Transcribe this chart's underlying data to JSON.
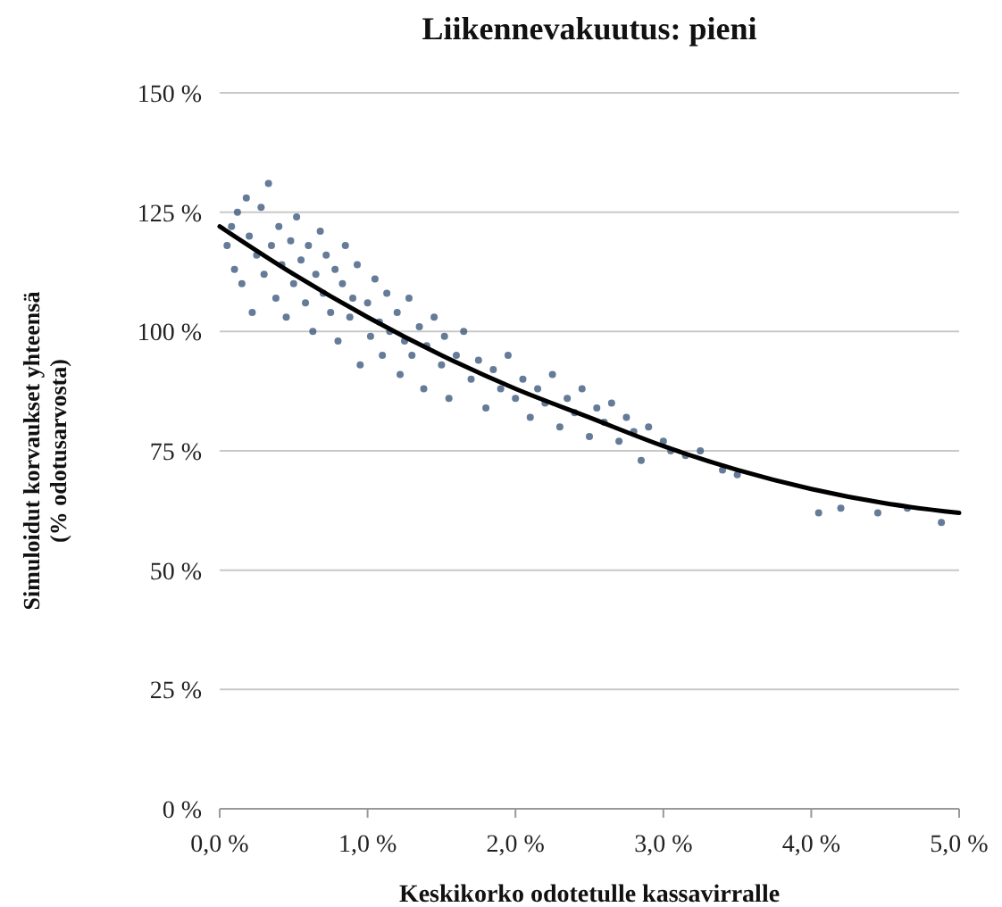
{
  "chart_data": {
    "type": "scatter",
    "title": "Liikennevakuutus: pieni",
    "xlabel": "Keskikorko odotetulle kassavirralle",
    "ylabel": "Simuloidut korvaukset yhteensä\n(% odotusarvosta)",
    "xlim": [
      0,
      5
    ],
    "xticks": [
      {
        "value": 0,
        "label": "0,0 %"
      },
      {
        "value": 1,
        "label": "1,0 %"
      },
      {
        "value": 2,
        "label": "2,0 %"
      },
      {
        "value": 3,
        "label": "3,0 %"
      },
      {
        "value": 4,
        "label": "4,0 %"
      },
      {
        "value": 5,
        "label": "5,0 %"
      }
    ],
    "ylim": [
      0,
      150
    ],
    "yticks": [
      {
        "value": 0,
        "label": "0 %"
      },
      {
        "value": 25,
        "label": "25 %"
      },
      {
        "value": 50,
        "label": "50 %"
      },
      {
        "value": 75,
        "label": "75 %"
      },
      {
        "value": 100,
        "label": "100 %"
      },
      {
        "value": 125,
        "label": "125 %"
      },
      {
        "value": 150,
        "label": "150 %"
      }
    ],
    "grid": "y",
    "marker": "circle",
    "series": [
      {
        "color": "#3e5a7e",
        "x": [
          0.05,
          0.08,
          0.1,
          0.12,
          0.15,
          0.18,
          0.2,
          0.22,
          0.25,
          0.28,
          0.3,
          0.33,
          0.35,
          0.38,
          0.4,
          0.42,
          0.45,
          0.48,
          0.5,
          0.52,
          0.55,
          0.58,
          0.6,
          0.63,
          0.65,
          0.68,
          0.7,
          0.72,
          0.75,
          0.78,
          0.8,
          0.83,
          0.85,
          0.88,
          0.9,
          0.93,
          0.95,
          1.0,
          1.02,
          1.05,
          1.08,
          1.1,
          1.13,
          1.15,
          1.2,
          1.22,
          1.25,
          1.28,
          1.3,
          1.35,
          1.38,
          1.4,
          1.45,
          1.5,
          1.52,
          1.55,
          1.6,
          1.65,
          1.7,
          1.75,
          1.8,
          1.85,
          1.9,
          1.95,
          2.0,
          2.05,
          2.1,
          2.15,
          2.2,
          2.25,
          2.3,
          2.35,
          2.4,
          2.45,
          2.5,
          2.55,
          2.6,
          2.65,
          2.7,
          2.75,
          2.8,
          2.85,
          2.9,
          3.0,
          3.05,
          3.15,
          3.25,
          3.4,
          3.5,
          4.05,
          4.2,
          4.45,
          4.65,
          4.88
        ],
        "values": [
          118,
          122,
          113,
          125,
          110,
          128,
          120,
          104,
          116,
          126,
          112,
          131,
          118,
          107,
          122,
          114,
          103,
          119,
          110,
          124,
          115,
          106,
          118,
          100,
          112,
          121,
          108,
          116,
          104,
          113,
          98,
          110,
          118,
          103,
          107,
          114,
          93,
          106,
          99,
          111,
          102,
          95,
          108,
          100,
          104,
          91,
          98,
          107,
          95,
          101,
          88,
          97,
          103,
          93,
          99,
          86,
          95,
          100,
          90,
          94,
          84,
          92,
          88,
          95,
          86,
          90,
          82,
          88,
          85,
          91,
          80,
          86,
          83,
          88,
          78,
          84,
          81,
          85,
          77,
          82,
          79,
          73,
          80,
          77,
          75,
          74,
          75,
          71,
          70,
          62,
          63,
          62,
          63,
          60
        ]
      },
      {
        "type": "line",
        "color": "#000000",
        "marker": "none",
        "x": [
          0,
          0.5,
          1,
          1.5,
          2,
          2.5,
          3,
          3.5,
          4,
          4.5,
          5
        ],
        "values": [
          122,
          112,
          103,
          95,
          88,
          82,
          76,
          71,
          67,
          64,
          62
        ]
      }
    ]
  }
}
